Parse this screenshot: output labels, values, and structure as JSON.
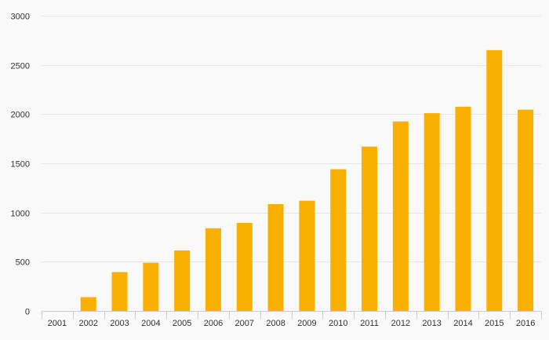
{
  "chart_data": {
    "type": "bar",
    "title": "",
    "xlabel": "",
    "ylabel": "",
    "categories": [
      "2001",
      "2002",
      "2003",
      "2004",
      "2005",
      "2006",
      "2007",
      "2008",
      "2009",
      "2010",
      "2011",
      "2012",
      "2013",
      "2014",
      "2015",
      "2016"
    ],
    "values": [
      0,
      140,
      395,
      490,
      615,
      840,
      895,
      1085,
      1120,
      1440,
      1670,
      1925,
      2010,
      2075,
      2650,
      2045
    ],
    "ylim": [
      0,
      3000
    ],
    "yticks": [
      0,
      500,
      1000,
      1500,
      2000,
      2500,
      3000
    ],
    "grid": true,
    "bar_color": "#f9b000",
    "legend": "none"
  }
}
